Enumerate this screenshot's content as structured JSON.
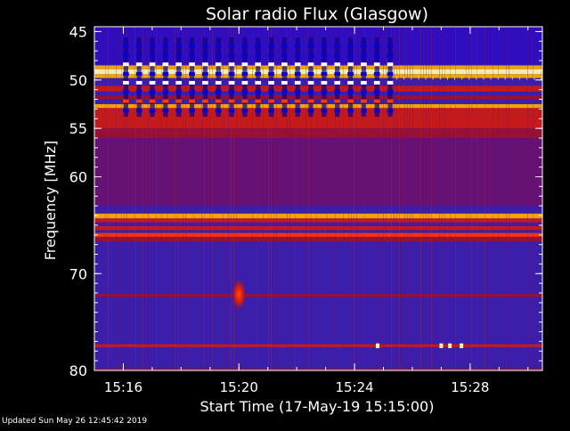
{
  "chart_data": {
    "type": "heatmap",
    "title": "Solar radio Flux (Glasgow)",
    "xlabel": "Start Time (17-May-19 15:15:00)",
    "ylabel": "Frequency [MHz]",
    "x_unit": "minutes after 15:15:00",
    "xlim": [
      0.0,
      15.5
    ],
    "ylim": [
      80.0,
      44.5
    ],
    "x_ticks": [
      {
        "value": 1,
        "label": "15:16"
      },
      {
        "value": 5,
        "label": "15:20"
      },
      {
        "value": 9,
        "label": "15:24"
      },
      {
        "value": 13,
        "label": "15:28"
      }
    ],
    "y_ticks": [
      {
        "value": 45,
        "label": "45"
      },
      {
        "value": 50,
        "label": "50"
      },
      {
        "value": 55,
        "label": "55"
      },
      {
        "value": 60,
        "label": "60"
      },
      {
        "value": 70,
        "label": "70"
      },
      {
        "value": 80,
        "label": "80"
      }
    ],
    "background_color": "#3b1faa",
    "colormap": [
      "#2a00cc",
      "#3b1faa",
      "#6a1070",
      "#a0102a",
      "#d01a10",
      "#ff3a00",
      "#ffb000",
      "#ffffb0"
    ],
    "bands": [
      {
        "f0": 48.5,
        "f1": 48.9,
        "level": 6
      },
      {
        "f0": 48.9,
        "f1": 49.4,
        "level": 7
      },
      {
        "f0": 49.4,
        "f1": 49.8,
        "level": 6
      },
      {
        "f0": 50.6,
        "f1": 51.2,
        "level": 4
      },
      {
        "f0": 51.6,
        "f1": 52.0,
        "level": 3
      },
      {
        "f0": 52.5,
        "f1": 52.9,
        "level": 6
      },
      {
        "f0": 52.9,
        "f1": 53.6,
        "level": 4
      },
      {
        "f0": 53.6,
        "f1": 55.0,
        "level": 4
      },
      {
        "f0": 55.0,
        "f1": 56.0,
        "level": 3
      },
      {
        "f0": 56.0,
        "f1": 63.0,
        "level": 2
      },
      {
        "f0": 63.8,
        "f1": 64.3,
        "level": 6
      },
      {
        "f0": 64.3,
        "f1": 64.7,
        "level": 4
      },
      {
        "f0": 65.1,
        "f1": 65.5,
        "level": 4
      },
      {
        "f0": 65.8,
        "f1": 66.2,
        "level": 5
      },
      {
        "f0": 66.2,
        "f1": 66.7,
        "level": 3
      },
      {
        "f0": 72.1,
        "f1": 72.4,
        "level": 3
      },
      {
        "f0": 77.3,
        "f1": 77.6,
        "level": 4
      },
      {
        "f0": 79.8,
        "f1": 80.0,
        "level": 3
      }
    ],
    "interference_region": {
      "t0": 0.85,
      "t1": 10.45,
      "f0": 45.6,
      "f1": 53.8,
      "columns": 21
    },
    "bursts": [
      {
        "time": 5.0,
        "f0": 70.5,
        "f1": 73.8,
        "level": 5
      },
      {
        "time": 9.8,
        "f0": 77.3,
        "f1": 77.6,
        "level": 7
      },
      {
        "time": 12.0,
        "f0": 77.3,
        "f1": 77.6,
        "level": 7
      },
      {
        "time": 12.3,
        "f0": 77.3,
        "f1": 77.6,
        "level": 7
      },
      {
        "time": 12.7,
        "f0": 77.3,
        "f1": 77.6,
        "level": 7
      }
    ]
  },
  "footer": {
    "updated": "Updated Sun May 26 12:45:42 2019"
  }
}
